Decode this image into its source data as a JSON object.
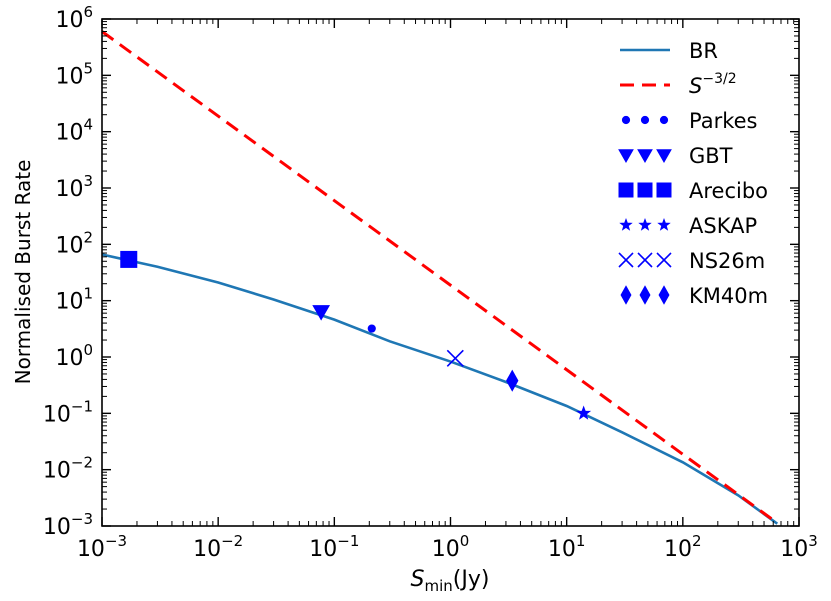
{
  "chart_data": {
    "type": "line",
    "xscale": "log",
    "yscale": "log",
    "xlim": [
      0.001,
      1000
    ],
    "ylim": [
      0.001,
      1000000
    ],
    "xlabel": {
      "base": "S",
      "sub": "min",
      "rest": "(Jy)"
    },
    "ylabel": "Normalised Burst Rate",
    "x_ticks": [
      {
        "value": 0.001,
        "base": "10",
        "exp": "−3"
      },
      {
        "value": 0.01,
        "base": "10",
        "exp": "−2"
      },
      {
        "value": 0.1,
        "base": "10",
        "exp": "−1"
      },
      {
        "value": 1,
        "base": "10",
        "exp": "0"
      },
      {
        "value": 10,
        "base": "10",
        "exp": "1"
      },
      {
        "value": 100,
        "base": "10",
        "exp": "2"
      },
      {
        "value": 1000,
        "base": "10",
        "exp": "3"
      }
    ],
    "y_ticks": [
      {
        "value": 0.001,
        "base": "10",
        "exp": "−3"
      },
      {
        "value": 0.01,
        "base": "10",
        "exp": "−2"
      },
      {
        "value": 0.1,
        "base": "10",
        "exp": "−1"
      },
      {
        "value": 1,
        "base": "10",
        "exp": "0"
      },
      {
        "value": 10,
        "base": "10",
        "exp": "1"
      },
      {
        "value": 100,
        "base": "10",
        "exp": "2"
      },
      {
        "value": 1000,
        "base": "10",
        "exp": "3"
      },
      {
        "value": 10000,
        "base": "10",
        "exp": "4"
      },
      {
        "value": 100000,
        "base": "10",
        "exp": "5"
      },
      {
        "value": 1000000,
        "base": "10",
        "exp": "6"
      }
    ],
    "series": [
      {
        "name": "BR",
        "style": "solid",
        "color": "#1f77b4",
        "points": [
          [
            0.001,
            66
          ],
          [
            0.003,
            40
          ],
          [
            0.01,
            21
          ],
          [
            0.03,
            10.5
          ],
          [
            0.1,
            4.6
          ],
          [
            0.3,
            1.9
          ],
          [
            1,
            0.83
          ],
          [
            3,
            0.36
          ],
          [
            10,
            0.135
          ],
          [
            30,
            0.046
          ],
          [
            100,
            0.0135
          ],
          [
            300,
            0.0035
          ],
          [
            650,
            0.0011
          ]
        ]
      },
      {
        "name": "S^{-3/2}",
        "style": "dashed",
        "color": "#ff0000",
        "points": [
          [
            0.001,
            600000
          ],
          [
            650,
            0.00113
          ]
        ]
      }
    ],
    "markers": [
      {
        "name": "Parkes",
        "shape": "circle",
        "x": 0.21,
        "y": 3.2,
        "color": "#0000ff"
      },
      {
        "name": "GBT",
        "shape": "triangle-down",
        "x": 0.077,
        "y": 6.4,
        "color": "#0000ff"
      },
      {
        "name": "Arecibo",
        "shape": "square",
        "x": 0.0017,
        "y": 54,
        "color": "#0000ff"
      },
      {
        "name": "ASKAP",
        "shape": "star",
        "x": 14,
        "y": 0.1,
        "color": "#0000ff"
      },
      {
        "name": "NS26m",
        "shape": "x",
        "x": 1.1,
        "y": 0.95,
        "color": "#0000ff"
      },
      {
        "name": "KM40m",
        "shape": "diamond",
        "x": 3.4,
        "y": 0.38,
        "color": "#0000ff"
      }
    ],
    "legend": {
      "position": "upper-right",
      "entries": [
        {
          "label": "BR",
          "kind": "line",
          "style": "solid",
          "color": "#1f77b4"
        },
        {
          "label": "S",
          "sup": "−3/2",
          "kind": "line",
          "style": "dashed",
          "color": "#ff0000"
        },
        {
          "label": "Parkes",
          "kind": "marker",
          "shape": "circle",
          "color": "#0000ff"
        },
        {
          "label": "GBT",
          "kind": "marker",
          "shape": "triangle-down",
          "color": "#0000ff"
        },
        {
          "label": "Arecibo",
          "kind": "marker",
          "shape": "square",
          "color": "#0000ff"
        },
        {
          "label": "ASKAP",
          "kind": "marker",
          "shape": "star",
          "color": "#0000ff"
        },
        {
          "label": "NS26m",
          "kind": "marker",
          "shape": "x",
          "color": "#0000ff"
        },
        {
          "label": "KM40m",
          "kind": "marker",
          "shape": "diamond",
          "color": "#0000ff"
        }
      ]
    }
  }
}
